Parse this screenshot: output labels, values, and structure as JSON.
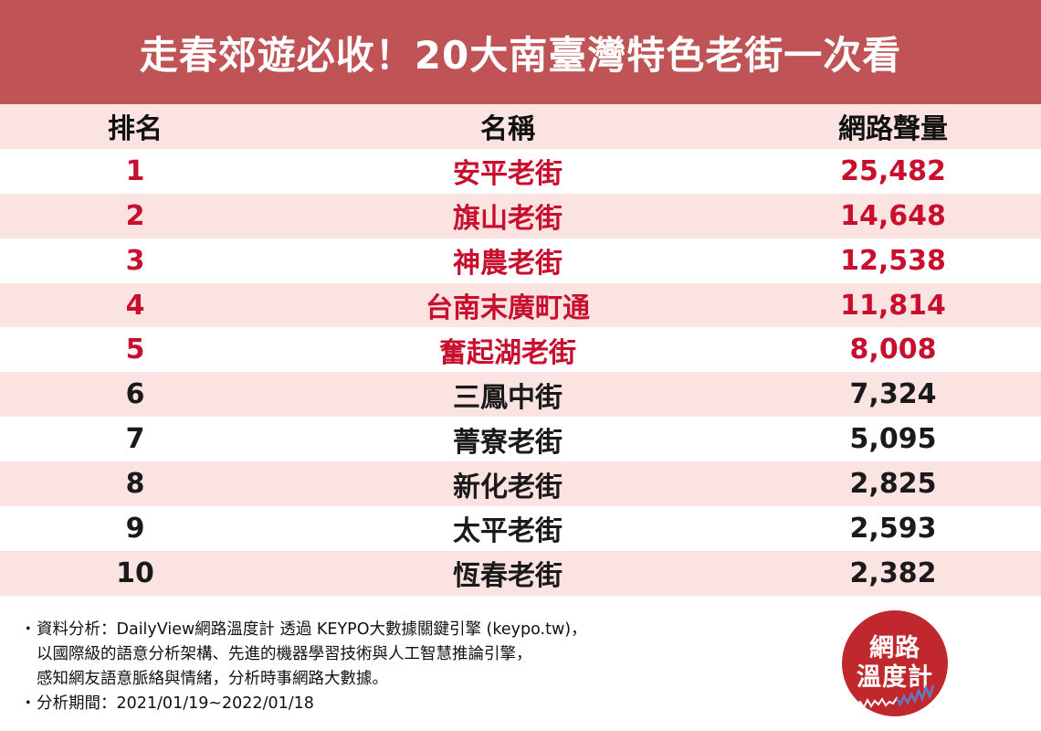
{
  "title": "走春郊遊必收！20大南臺灣特色老街一次看",
  "table": {
    "headers": {
      "rank": "排名",
      "name": "名稱",
      "volume": "網路聲量"
    },
    "rows": [
      {
        "rank": "1",
        "name": "安平老街",
        "volume": "25,482"
      },
      {
        "rank": "2",
        "name": "旗山老街",
        "volume": "14,648"
      },
      {
        "rank": "3",
        "name": "神農老街",
        "volume": "12,538"
      },
      {
        "rank": "4",
        "name": "台南末廣町通",
        "volume": "11,814"
      },
      {
        "rank": "5",
        "name": "奮起湖老街",
        "volume": "8,008"
      },
      {
        "rank": "6",
        "name": "三鳳中街",
        "volume": "7,324"
      },
      {
        "rank": "7",
        "name": "菁寮老街",
        "volume": "5,095"
      },
      {
        "rank": "8",
        "name": "新化老街",
        "volume": "2,825"
      },
      {
        "rank": "9",
        "name": "太平老街",
        "volume": "2,593"
      },
      {
        "rank": "10",
        "name": "恆春老街",
        "volume": "2,382"
      }
    ]
  },
  "colors": {
    "title_bg": "#bf5355",
    "row_shade": "#fbe3e2",
    "highlight_text": "#c8102e",
    "logo_bg": "#c0282d"
  },
  "footer": {
    "bullet": "・",
    "note_line1": "資料分析：DailyView網路溫度計 透過 KEYPO大數據關鍵引擎 (keypo.tw)，",
    "note_line2": "以國際級的語意分析架構、先進的機器學習技術與人工智慧推論引擎，",
    "note_line3": "感知網友語意脈絡與情緒，分析時事網路大數據。",
    "period": "分析期間：2021/01/19~2022/01/18"
  },
  "logo": {
    "line1": "網路",
    "line2": "溫度計"
  }
}
